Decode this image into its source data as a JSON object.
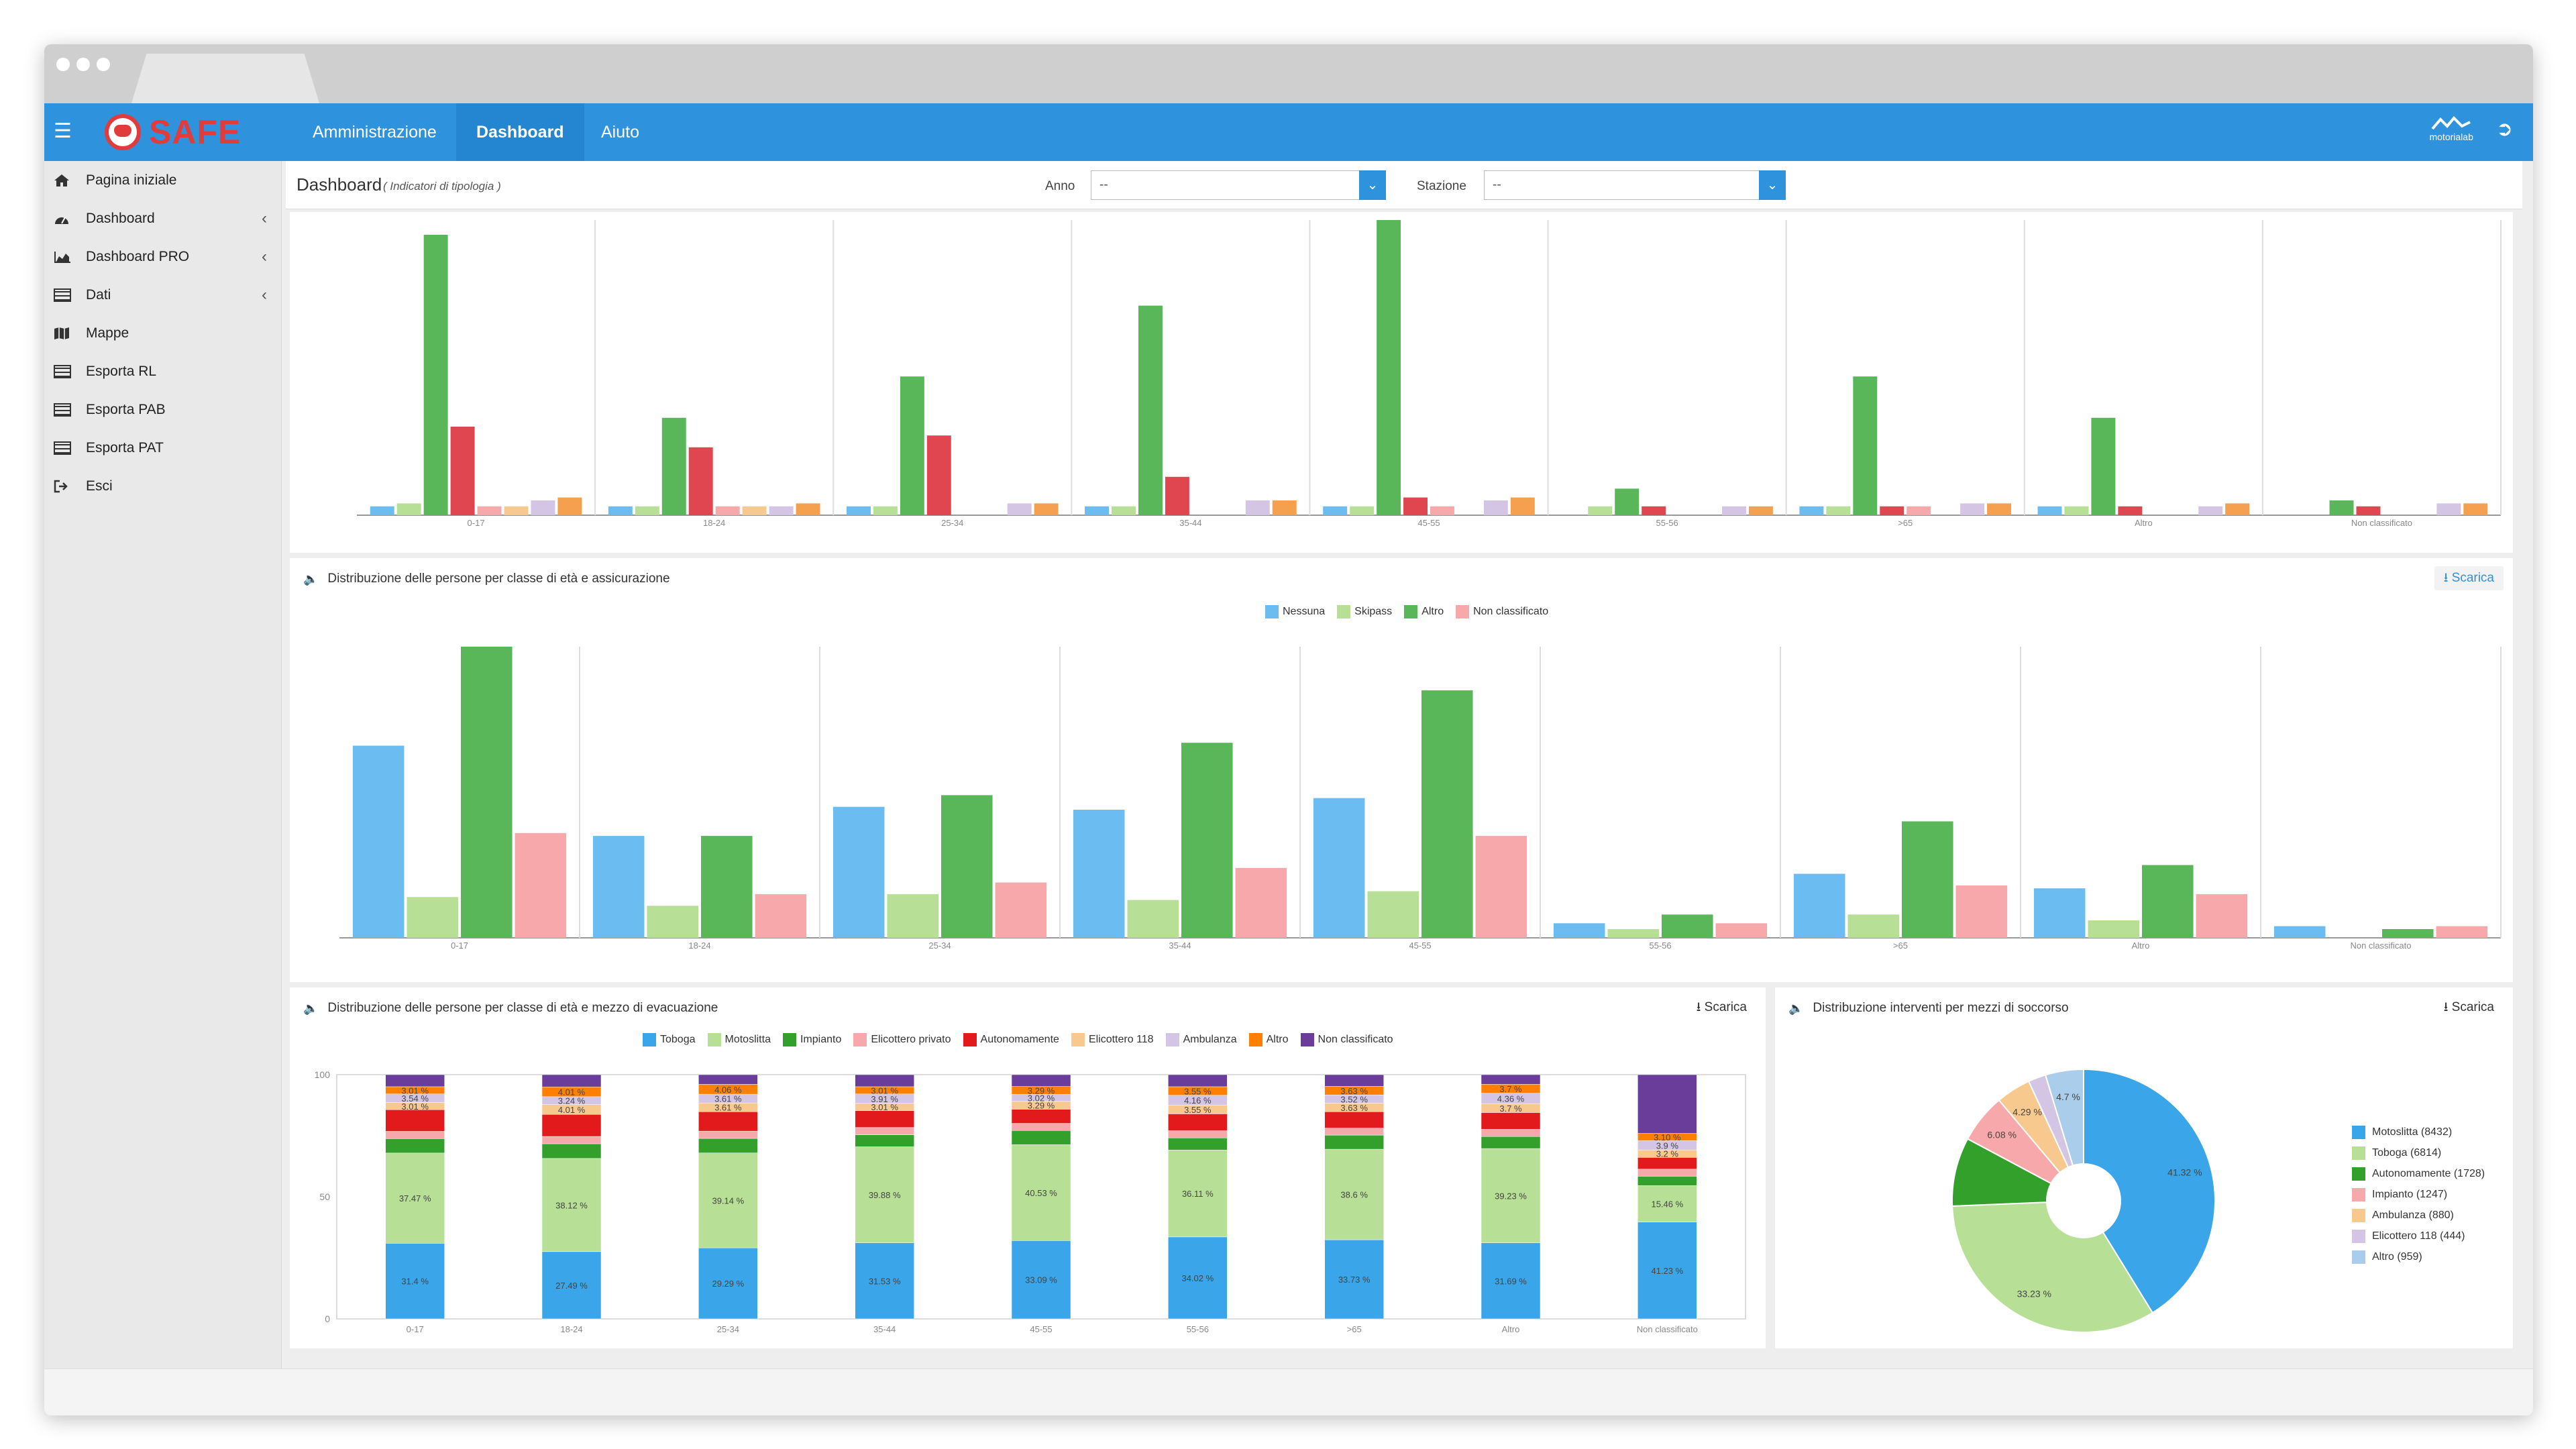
{
  "app": {
    "name": "SAFE"
  },
  "nav": {
    "items": [
      {
        "label": "Amministrazione",
        "active": false
      },
      {
        "label": "Dashboard",
        "active": true
      },
      {
        "label": "Aiuto",
        "active": false
      }
    ],
    "brand": "motorialab"
  },
  "sidebar": {
    "items": [
      {
        "label": "Pagina iniziale",
        "icon": "home-icon",
        "chevron": false
      },
      {
        "label": "Dashboard",
        "icon": "dashboard-icon",
        "chevron": true
      },
      {
        "label": "Dashboard PRO",
        "icon": "area-chart-icon",
        "chevron": true
      },
      {
        "label": "Dati",
        "icon": "table-icon",
        "chevron": true
      },
      {
        "label": "Mappe",
        "icon": "map-icon",
        "chevron": false
      },
      {
        "label": "Esporta RL",
        "icon": "table-icon",
        "chevron": false
      },
      {
        "label": "Esporta PAB",
        "icon": "table-icon",
        "chevron": false
      },
      {
        "label": "Esporta PAT",
        "icon": "table-icon",
        "chevron": false
      },
      {
        "label": "Esci",
        "icon": "sign-out-icon",
        "chevron": false
      }
    ]
  },
  "header": {
    "title": "Dashboard",
    "subtitle": "( Indicatori di tipologia )",
    "anno_label": "Anno",
    "anno_value": "--",
    "stazione_label": "Stazione",
    "stazione_value": "--"
  },
  "colors": {
    "blue": "#5ab3ec",
    "lightgreen": "#b7df95",
    "green": "#59b75a",
    "red": "#e0464f",
    "pink": "#f7a8aa",
    "lavender": "#d4c5e4",
    "orange": "#f5a04f",
    "peach": "#f8c98e",
    "purple": "#6d3fa0",
    "skyblue": "#a9cdea",
    "toboga": "#3aa5e8",
    "darkgreen": "#33a02c"
  },
  "panels": {
    "top": {
      "download": ""
    },
    "insurance": {
      "title": "Distribuzione delle persone per classe di età e assicurazione",
      "download": "Scarica"
    },
    "evacuation": {
      "title": "Distribuzione delle persone per classe di età e mezzo di evacuazione",
      "download": "Scarica"
    },
    "rescue": {
      "title": "Distribuzione interventi per mezzi di soccorso",
      "download": "Scarica"
    }
  },
  "chart_data": [
    {
      "type": "bar",
      "categories": [
        "0-17",
        "18-24",
        "25-34",
        "35-44",
        "45-55",
        "55-56",
        ">65",
        "Altro",
        "Non classificato"
      ],
      "ylim": [
        0,
        100
      ],
      "series": [
        {
          "color": "#6bbcf0",
          "values": [
            3,
            3,
            3,
            3,
            3,
            0,
            3,
            3,
            0
          ]
        },
        {
          "color": "#b7df95",
          "values": [
            4,
            3,
            3,
            3,
            3,
            3,
            3,
            3,
            0
          ]
        },
        {
          "color": "#59b75a",
          "values": [
            95,
            33,
            47,
            71,
            100,
            9,
            47,
            33,
            5
          ]
        },
        {
          "color": "#e0464f",
          "values": [
            30,
            23,
            27,
            13,
            6,
            3,
            3,
            3,
            3
          ]
        },
        {
          "color": "#f7a8aa",
          "values": [
            3,
            3,
            0,
            0,
            3,
            0,
            3,
            0,
            0
          ]
        },
        {
          "color": "#f8c98e",
          "values": [
            3,
            3,
            0,
            0,
            0,
            0,
            0,
            0,
            0
          ]
        },
        {
          "color": "#d4c5e4",
          "values": [
            5,
            3,
            4,
            5,
            5,
            3,
            4,
            3,
            4
          ]
        },
        {
          "color": "#f5a04f",
          "values": [
            6,
            4,
            4,
            5,
            6,
            3,
            4,
            4,
            4
          ]
        }
      ]
    },
    {
      "type": "bar",
      "categories": [
        "0-17",
        "18-24",
        "25-34",
        "35-44",
        "45-55",
        "55-56",
        ">65",
        "Altro",
        "Non classificato"
      ],
      "ylim": [
        0,
        100
      ],
      "legend": "top",
      "series": [
        {
          "name": "Nessuna",
          "color": "#6bbcf0",
          "values": [
            66,
            35,
            45,
            44,
            48,
            5,
            22,
            17,
            4
          ]
        },
        {
          "name": "Skipass",
          "color": "#b7df95",
          "values": [
            14,
            11,
            15,
            13,
            16,
            3,
            8,
            6,
            0
          ]
        },
        {
          "name": "Altro",
          "color": "#59b75a",
          "values": [
            100,
            35,
            49,
            67,
            85,
            8,
            40,
            25,
            3
          ]
        },
        {
          "name": "Non classificato",
          "color": "#f7a8aa",
          "values": [
            36,
            15,
            19,
            24,
            35,
            5,
            18,
            15,
            4
          ]
        }
      ]
    },
    {
      "type": "bar",
      "stacked": true,
      "categories": [
        "0-17",
        "18-24",
        "25-34",
        "35-44",
        "45-55",
        "55-56",
        ">65",
        "Altro",
        "Non classificato"
      ],
      "ylim": [
        0,
        100
      ],
      "yticks": [
        0,
        50,
        100
      ],
      "legend": "top",
      "series": [
        {
          "name": "Toboga",
          "color": "#3aa5e8",
          "values": [
            31.4,
            27.49,
            29.29,
            31.53,
            33.09,
            34.02,
            33.73,
            31.69,
            41.23
          ],
          "labels": [
            "31.4 %",
            "27.49 %",
            "29.29 %",
            "31.53 %",
            "33.09 %",
            "34.02 %",
            "33.73 %",
            "31.69 %",
            "41.23 %"
          ]
        },
        {
          "name": "Motoslitta",
          "color": "#b7df95",
          "values": [
            37.47,
            38.12,
            39.14,
            39.88,
            40.53,
            36.11,
            38.6,
            39.23,
            15.46
          ],
          "labels": [
            "37.47 %",
            "38.12 %",
            "39.14 %",
            "39.88 %",
            "40.53 %",
            "36.11 %",
            "38.6 %",
            "39.23 %",
            "15.46 %"
          ]
        },
        {
          "name": "Impianto",
          "color": "#33a02c",
          "values": [
            6,
            6,
            6,
            5,
            6,
            5,
            6,
            5,
            4
          ]
        },
        {
          "name": "Elicottero privato",
          "color": "#f7a8aa",
          "values": [
            3,
            3,
            3,
            3,
            3,
            3,
            3,
            3,
            3
          ]
        },
        {
          "name": "Autonomamente",
          "color": "#e31a1c",
          "values": [
            9,
            9,
            8,
            7,
            6,
            7,
            7,
            7,
            5
          ]
        },
        {
          "name": "Elicottero 118",
          "color": "#f8c98e",
          "values": [
            3.01,
            4.01,
            3.61,
            3.01,
            3.29,
            3.55,
            3.63,
            3.7,
            3.2
          ],
          "labels": [
            "3.01 %",
            "4.01 %",
            "3.61 %",
            "3.01 %",
            "3.29 %",
            "3.55 %",
            "3.63 %",
            "3.7 %",
            "3.2 %"
          ]
        },
        {
          "name": "Ambulanza",
          "color": "#d4c5e4",
          "values": [
            3.54,
            3.24,
            3.61,
            3.91,
            3.02,
            4.16,
            3.52,
            4.36,
            3.9
          ],
          "labels": [
            "3.54 %",
            "3.24 %",
            "3.61 %",
            "3.91 %",
            "3.02 %",
            "4.16 %",
            "3.52 %",
            "4.36 %",
            "3.9 %"
          ]
        },
        {
          "name": "Altro",
          "color": "#ff7f00",
          "values": [
            3.01,
            4.01,
            4.06,
            3.01,
            3.29,
            3.55,
            3.63,
            3.7,
            3.1
          ],
          "labels": [
            "3.01 %",
            "4.01 %",
            "4.06 %",
            "3.01 %",
            "3.29 %",
            "3.55 %",
            "3.63 %",
            "3.7 %",
            "3.10 %"
          ]
        },
        {
          "name": "Non classificato",
          "color": "#6a3d9a",
          "values": [
            5,
            5,
            4,
            5,
            5,
            5,
            5,
            4,
            25
          ]
        }
      ]
    },
    {
      "type": "pie",
      "legend": "right",
      "slices": [
        {
          "name": "Motoslitta",
          "count": 8432,
          "legend": "Motoslitta (8432)",
          "percent": 41.32,
          "label": "41.32 %",
          "color": "#3aa5e8"
        },
        {
          "name": "Toboga",
          "count": 6814,
          "legend": "Toboga (6814)",
          "percent": 33.23,
          "label": "33.23 %",
          "color": "#b7df95"
        },
        {
          "name": "Autonomamente",
          "count": 1728,
          "legend": "Autonomamente (1728)",
          "percent": 8.47,
          "label": "",
          "color": "#33a02c"
        },
        {
          "name": "Impianto",
          "count": 1247,
          "legend": "Impianto (1247)",
          "percent": 6.08,
          "label": "6.08 %",
          "color": "#f7a8aa"
        },
        {
          "name": "Ambulanza",
          "count": 880,
          "legend": "Ambulanza (880)",
          "percent": 4.29,
          "label": "4.29 %",
          "color": "#f8c98e"
        },
        {
          "name": "Elicottero 118",
          "count": 444,
          "legend": "Elicottero 118 (444)",
          "percent": 2.17,
          "label": "",
          "color": "#d4c5e4"
        },
        {
          "name": "Altro",
          "count": 959,
          "legend": "Altro (959)",
          "percent": 4.7,
          "label": "4.7 %",
          "color": "#a9cdea"
        }
      ]
    }
  ]
}
